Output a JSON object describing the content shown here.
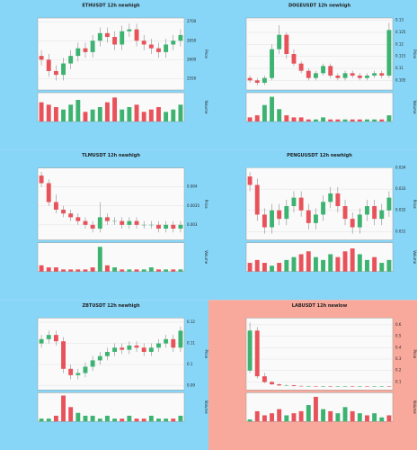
{
  "chart_data": [
    {
      "type": "candlestick",
      "title": "ETHUSDT 12h newhigh",
      "background": "#87d6f8",
      "up_color": "#3cb371",
      "down_color": "#e8525a",
      "ylabel": "Price",
      "vlabel": "Volume",
      "open": [
        2610,
        2600,
        2570,
        2560,
        2590,
        2610,
        2630,
        2620,
        2650,
        2670,
        2660,
        2640,
        2675,
        2680,
        2650,
        2640,
        2630,
        2620,
        2640,
        2650
      ],
      "high": [
        2625,
        2615,
        2585,
        2605,
        2625,
        2645,
        2645,
        2665,
        2685,
        2685,
        2675,
        2690,
        2695,
        2695,
        2665,
        2655,
        2645,
        2655,
        2665,
        2680
      ],
      "low": [
        2585,
        2555,
        2545,
        2545,
        2575,
        2595,
        2605,
        2605,
        2635,
        2645,
        2625,
        2625,
        2660,
        2635,
        2625,
        2615,
        2605,
        2605,
        2625,
        2635
      ],
      "close": [
        2600,
        2570,
        2560,
        2590,
        2610,
        2630,
        2620,
        2650,
        2670,
        2660,
        2640,
        2675,
        2680,
        2650,
        2640,
        2630,
        2620,
        2640,
        2650,
        2665
      ],
      "volume": [
        8,
        7,
        6,
        5,
        7,
        9,
        4,
        5,
        6,
        8,
        10,
        5,
        6,
        7,
        4,
        5,
        6,
        4,
        5,
        7
      ],
      "ylim": [
        2520,
        2710
      ],
      "yticks": [
        2550,
        2600,
        2650,
        2700
      ],
      "vlim": [
        0,
        12
      ]
    },
    {
      "type": "candlestick",
      "title": "DOGEUSDT 12h newhigh",
      "background": "#87d6f8",
      "up_color": "#3cb371",
      "down_color": "#e8525a",
      "ylabel": "Price",
      "vlabel": "Volume",
      "open": [
        0.106,
        0.105,
        0.104,
        0.106,
        0.118,
        0.124,
        0.116,
        0.112,
        0.109,
        0.106,
        0.108,
        0.111,
        0.107,
        0.106,
        0.108,
        0.107,
        0.106,
        0.107,
        0.108,
        0.107
      ],
      "high": [
        0.107,
        0.106,
        0.107,
        0.12,
        0.128,
        0.125,
        0.118,
        0.113,
        0.11,
        0.109,
        0.112,
        0.112,
        0.108,
        0.109,
        0.109,
        0.108,
        0.108,
        0.109,
        0.109,
        0.129
      ],
      "low": [
        0.104,
        0.103,
        0.103,
        0.105,
        0.116,
        0.114,
        0.111,
        0.108,
        0.105,
        0.105,
        0.107,
        0.106,
        0.105,
        0.105,
        0.106,
        0.105,
        0.105,
        0.106,
        0.106,
        0.106
      ],
      "close": [
        0.105,
        0.104,
        0.106,
        0.118,
        0.124,
        0.116,
        0.112,
        0.109,
        0.106,
        0.108,
        0.111,
        0.107,
        0.106,
        0.108,
        0.107,
        0.106,
        0.107,
        0.108,
        0.107,
        0.126
      ],
      "volume": [
        2,
        3,
        8,
        12,
        6,
        3,
        2,
        2,
        1,
        1,
        2,
        1,
        1,
        1,
        1,
        1,
        1,
        1,
        1,
        3
      ],
      "ylim": [
        0.101,
        0.131
      ],
      "yticks": [
        0.105,
        0.11,
        0.115,
        0.12,
        0.125,
        0.13
      ],
      "vlim": [
        0,
        14
      ]
    },
    {
      "type": "candlestick",
      "title": "TLMUSDT 12h newhigh",
      "background": "#87d6f8",
      "up_color": "#3cb371",
      "down_color": "#e8525a",
      "ylabel": "Price",
      "vlabel": "Volume",
      "open": [
        0.0043,
        0.0041,
        0.0036,
        0.0034,
        0.0033,
        0.0032,
        0.0031,
        0.003,
        0.0029,
        0.0032,
        0.0031,
        0.0031,
        0.003,
        0.0031,
        0.003,
        0.003,
        0.003,
        0.0029,
        0.003,
        0.0029
      ],
      "high": [
        0.0044,
        0.0042,
        0.0038,
        0.0035,
        0.0034,
        0.0033,
        0.0032,
        0.0031,
        0.0036,
        0.0033,
        0.0032,
        0.0032,
        0.0032,
        0.0032,
        0.0031,
        0.0031,
        0.0031,
        0.0031,
        0.0031,
        0.0031
      ],
      "low": [
        0.004,
        0.0035,
        0.0033,
        0.0032,
        0.0031,
        0.003,
        0.0029,
        0.0028,
        0.0028,
        0.003,
        0.003,
        0.0029,
        0.0029,
        0.0029,
        0.0029,
        0.0029,
        0.0028,
        0.0028,
        0.0028,
        0.0028
      ],
      "close": [
        0.0041,
        0.0036,
        0.0034,
        0.0033,
        0.0032,
        0.0031,
        0.003,
        0.0029,
        0.0032,
        0.0031,
        0.0031,
        0.003,
        0.0031,
        0.003,
        0.003,
        0.003,
        0.0029,
        0.003,
        0.0029,
        0.003
      ],
      "volume": [
        3,
        2,
        2,
        1,
        1,
        1,
        1,
        2,
        12,
        3,
        2,
        1,
        1,
        1,
        1,
        2,
        1,
        1,
        1,
        1
      ],
      "ylim": [
        0.0026,
        0.0045
      ],
      "yticks": [
        0.003,
        0.0035,
        0.004
      ],
      "vlim": [
        0,
        14
      ]
    },
    {
      "type": "candlestick",
      "title": "PENGUUSDT 12h newhigh",
      "background": "#87d6f8",
      "up_color": "#3cb371",
      "down_color": "#e8525a",
      "ylabel": "Price",
      "vlabel": "Volume",
      "open": [
        0.0336,
        0.0332,
        0.0318,
        0.0312,
        0.032,
        0.0316,
        0.0322,
        0.0326,
        0.032,
        0.0314,
        0.0318,
        0.0324,
        0.0328,
        0.0322,
        0.0316,
        0.0312,
        0.0318,
        0.0322,
        0.0316,
        0.032
      ],
      "high": [
        0.0338,
        0.0335,
        0.0321,
        0.0323,
        0.0323,
        0.0325,
        0.0329,
        0.0329,
        0.0323,
        0.0321,
        0.0327,
        0.0331,
        0.0331,
        0.0325,
        0.0319,
        0.0321,
        0.0325,
        0.0325,
        0.0323,
        0.0329
      ],
      "low": [
        0.0329,
        0.0315,
        0.0309,
        0.0309,
        0.0313,
        0.0313,
        0.0319,
        0.0317,
        0.0311,
        0.0311,
        0.0315,
        0.0321,
        0.0319,
        0.0313,
        0.0309,
        0.0309,
        0.0315,
        0.0313,
        0.0313,
        0.0317
      ],
      "close": [
        0.0332,
        0.0318,
        0.0312,
        0.032,
        0.0316,
        0.0322,
        0.0326,
        0.032,
        0.0314,
        0.0318,
        0.0324,
        0.0328,
        0.0322,
        0.0316,
        0.0312,
        0.0318,
        0.0322,
        0.0316,
        0.032,
        0.0326
      ],
      "volume": [
        3,
        4,
        3,
        2,
        3,
        4,
        5,
        6,
        7,
        5,
        4,
        6,
        5,
        7,
        8,
        6,
        4,
        5,
        3,
        4
      ],
      "ylim": [
        0.0306,
        0.034
      ],
      "yticks": [
        0.031,
        0.032,
        0.033,
        0.034
      ],
      "vlim": [
        0,
        10
      ]
    },
    {
      "type": "candlestick",
      "title": "ZBTUSDT 12h newhigh",
      "background": "#87d6f8",
      "up_color": "#3cb371",
      "down_color": "#e8525a",
      "ylabel": "Price",
      "vlabel": "Volume",
      "open": [
        0.11,
        0.112,
        0.114,
        0.111,
        0.098,
        0.095,
        0.096,
        0.099,
        0.102,
        0.104,
        0.106,
        0.108,
        0.107,
        0.109,
        0.108,
        0.106,
        0.108,
        0.11,
        0.112,
        0.108
      ],
      "high": [
        0.114,
        0.116,
        0.116,
        0.113,
        0.1,
        0.098,
        0.101,
        0.104,
        0.106,
        0.108,
        0.11,
        0.11,
        0.111,
        0.111,
        0.11,
        0.11,
        0.112,
        0.114,
        0.114,
        0.118
      ],
      "low": [
        0.108,
        0.11,
        0.109,
        0.096,
        0.093,
        0.093,
        0.094,
        0.097,
        0.1,
        0.102,
        0.104,
        0.105,
        0.105,
        0.106,
        0.104,
        0.104,
        0.106,
        0.108,
        0.106,
        0.106
      ],
      "close": [
        0.112,
        0.114,
        0.111,
        0.098,
        0.095,
        0.096,
        0.099,
        0.102,
        0.104,
        0.106,
        0.108,
        0.107,
        0.109,
        0.108,
        0.106,
        0.108,
        0.11,
        0.112,
        0.108,
        0.116
      ],
      "volume": [
        1,
        1,
        2,
        9,
        5,
        3,
        2,
        2,
        1,
        2,
        1,
        1,
        2,
        1,
        1,
        2,
        1,
        1,
        1,
        2
      ],
      "ylim": [
        0.088,
        0.122
      ],
      "yticks": [
        0.09,
        0.1,
        0.11,
        0.12
      ],
      "vlim": [
        0,
        10
      ]
    },
    {
      "type": "candlestick",
      "title": "LABUSDT 12h newlow",
      "background": "#f9a99b",
      "up_color": "#3cb371",
      "down_color": "#e8525a",
      "ylabel": "Price",
      "vlabel": "Volume",
      "open": [
        0.2,
        0.55,
        0.15,
        0.1,
        0.08,
        0.07,
        0.072,
        0.065,
        0.063,
        0.064,
        0.062,
        0.063,
        0.061,
        0.062,
        0.063,
        0.061,
        0.062,
        0.06,
        0.061,
        0.062
      ],
      "high": [
        0.62,
        0.58,
        0.18,
        0.11,
        0.085,
        0.078,
        0.075,
        0.068,
        0.067,
        0.066,
        0.065,
        0.065,
        0.064,
        0.065,
        0.065,
        0.064,
        0.064,
        0.063,
        0.064,
        0.064
      ],
      "low": [
        0.18,
        0.13,
        0.09,
        0.075,
        0.066,
        0.066,
        0.062,
        0.06,
        0.06,
        0.059,
        0.059,
        0.059,
        0.058,
        0.059,
        0.058,
        0.058,
        0.058,
        0.058,
        0.058,
        0.058
      ],
      "close": [
        0.55,
        0.15,
        0.1,
        0.08,
        0.07,
        0.072,
        0.065,
        0.063,
        0.064,
        0.062,
        0.063,
        0.061,
        0.062,
        0.063,
        0.061,
        0.062,
        0.06,
        0.061,
        0.062,
        0.061
      ],
      "volume": [
        1,
        5,
        3,
        4,
        6,
        3,
        4,
        5,
        8,
        12,
        6,
        5,
        4,
        7,
        5,
        4,
        3,
        4,
        2,
        3
      ],
      "ylim": [
        0.03,
        0.66
      ],
      "yticks": [
        0.1,
        0.2,
        0.3,
        0.4,
        0.5,
        0.6
      ],
      "vlim": [
        0,
        14
      ]
    }
  ]
}
